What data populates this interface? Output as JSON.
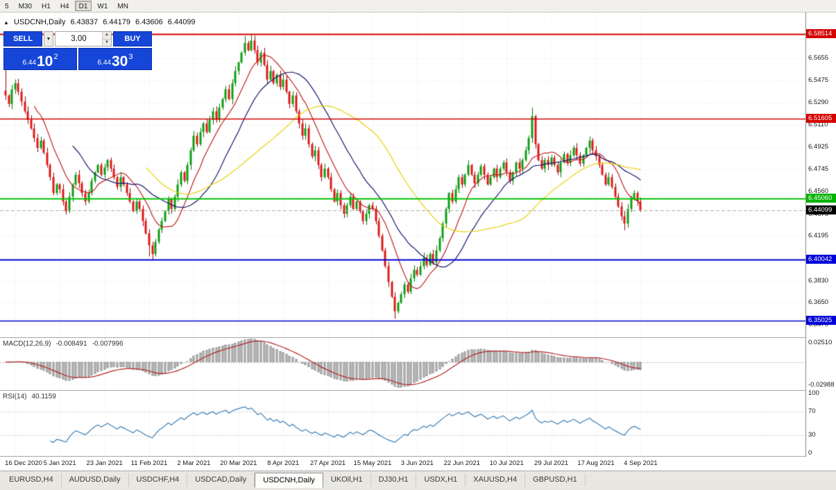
{
  "toolbar": {
    "timeframes": [
      "5",
      "M30",
      "H1",
      "H4",
      "D1",
      "W1",
      "MN"
    ],
    "active": "D1"
  },
  "chart_header": {
    "symbol": "USDCNH,Daily",
    "open": "6.43837",
    "high": "6.44179",
    "low": "6.43606",
    "close": "6.44099"
  },
  "trade_panel": {
    "sell_label": "SELL",
    "buy_label": "BUY",
    "volume": "3.00",
    "sell_price": {
      "base": "6.44",
      "big": "10",
      "sup": "2"
    },
    "buy_price": {
      "base": "6.44",
      "big": "30",
      "sup": "3"
    }
  },
  "y_axis": {
    "ticks": [
      "6.5655",
      "6.5475",
      "6.5290",
      "6.5110",
      "6.4925",
      "6.4745",
      "6.4560",
      "6.4375",
      "6.4195",
      "6.4010",
      "6.3830",
      "6.3650",
      "6.3470"
    ]
  },
  "price_lines": [
    {
      "value": "6.58514",
      "price": 6.58514,
      "line_color": "#D40000",
      "label_bg": "#D40000",
      "width": 2,
      "style": "solid"
    },
    {
      "value": "6.51605",
      "price": 6.51605,
      "line_color": "#D40000",
      "label_bg": "#D40000",
      "width": 1.4,
      "style": "solid"
    },
    {
      "value": "6.45060",
      "price": 6.4506,
      "line_color": "#00C400",
      "label_bg": "#00B400",
      "width": 2,
      "style": "solid"
    },
    {
      "value": "6.44099",
      "price": 6.44099,
      "line_color": "#ABABAB",
      "label_bg": "#000000",
      "width": 1,
      "style": "dash",
      "current": true
    },
    {
      "value": "6.40042",
      "price": 6.40042,
      "line_color": "#0000D8",
      "label_bg": "#0000D8",
      "width": 2,
      "style": "solid"
    },
    {
      "value": "6.35025",
      "price": 6.35025,
      "line_color": "#0000D8",
      "label_bg": "#0000D8",
      "width": 1.4,
      "style": "solid"
    }
  ],
  "macd": {
    "title": "MACD(12,26,9)",
    "value_main": "-0.008491",
    "value_signal": "-0.007996",
    "max_label": "0.02510",
    "min_label": "-0.02988",
    "fast": 12,
    "slow": 26,
    "signal": 9
  },
  "rsi": {
    "title": "RSI(14)",
    "value": "40.1159",
    "period": 14,
    "levels": [
      "100",
      "70",
      "30",
      "0"
    ],
    "dotted_levels": [
      70,
      30
    ]
  },
  "x_axis": {
    "dates": [
      "16 Dec 2020",
      "5 Jan 2021",
      "23 Jan 2021",
      "11 Feb 2021",
      "2 Mar 2021",
      "20 Mar 2021",
      "8 Apr 2021",
      "27 Apr 2021",
      "15 May 2021",
      "3 Jun 2021",
      "22 Jun 2021",
      "10 Jul 2021",
      "29 Jul 2021",
      "17 Aug 2021",
      "4 Sep 2021"
    ]
  },
  "tabs": {
    "active_index": 4,
    "items": [
      {
        "label": "EURUSD,H4"
      },
      {
        "label": "AUDUSD,Daily"
      },
      {
        "label": "USDCHF,H4"
      },
      {
        "label": "USDCAD,Daily"
      },
      {
        "label": "USDCNH,Daily"
      },
      {
        "label": "UKOil,H1"
      },
      {
        "label": "DJ30,H1"
      },
      {
        "label": "USDX,H1"
      },
      {
        "label": "XAUUSD,H4"
      },
      {
        "label": "GBPUSD,H1"
      }
    ]
  },
  "colors": {
    "panel_blue": "#1646D8",
    "up": "#0AA010",
    "up_border": "#067606",
    "down": "#E01818",
    "down_border": "#A00000",
    "grid": "#E4E4E4",
    "macd_bar": "#C8C8C8",
    "macd_bar_border": "#909090",
    "macd_signal": "#B22222",
    "rsi_line": "#3C7EB4",
    "current_price_label": "#000000"
  },
  "chart_data": {
    "type": "candlestick",
    "symbol": "USDCNH",
    "timeframe": "Daily",
    "ylim": [
      6.3367,
      6.603
    ],
    "date_first_index": 3,
    "date_step": 14,
    "moving_averages": [
      {
        "period": 10,
        "color": "#C02020"
      },
      {
        "period": 22,
        "color": "#16166E"
      },
      {
        "period": 45,
        "color": "#E8D20A"
      }
    ],
    "closes": [
      6.535,
      6.528,
      6.54,
      6.545,
      6.538,
      6.53,
      6.522,
      6.515,
      6.508,
      6.5,
      6.492,
      6.498,
      6.488,
      6.478,
      6.468,
      6.455,
      6.462,
      6.458,
      6.448,
      6.44,
      6.452,
      6.462,
      6.47,
      6.463,
      6.455,
      6.448,
      6.455,
      6.465,
      6.472,
      6.478,
      6.47,
      6.476,
      6.482,
      6.475,
      6.468,
      6.46,
      6.468,
      6.462,
      6.455,
      6.448,
      6.44,
      6.448,
      6.442,
      6.432,
      6.422,
      6.412,
      6.405,
      6.415,
      6.425,
      6.432,
      6.44,
      6.45,
      6.442,
      6.452,
      6.462,
      6.472,
      6.465,
      6.478,
      6.49,
      6.502,
      6.495,
      6.505,
      6.512,
      6.505,
      6.515,
      6.522,
      6.515,
      6.525,
      6.532,
      6.54,
      6.532,
      6.545,
      6.555,
      6.562,
      6.57,
      6.578,
      6.572,
      6.58,
      6.572,
      6.562,
      6.57,
      6.56,
      6.548,
      6.555,
      6.545,
      6.552,
      6.542,
      6.548,
      6.538,
      6.528,
      6.535,
      6.522,
      6.512,
      6.502,
      6.508,
      6.495,
      6.485,
      6.49,
      6.478,
      6.468,
      6.475,
      6.468,
      6.458,
      6.448,
      6.455,
      6.445,
      6.438,
      6.445,
      6.452,
      6.442,
      6.448,
      6.44,
      6.432,
      6.438,
      6.445,
      6.442,
      6.432,
      6.42,
      6.408,
      6.395,
      6.382,
      6.37,
      6.358,
      6.365,
      6.372,
      6.38,
      6.374,
      6.385,
      6.392,
      6.388,
      6.395,
      6.402,
      6.396,
      6.405,
      6.398,
      6.408,
      6.418,
      6.43,
      6.442,
      6.455,
      6.448,
      6.458,
      6.468,
      6.462,
      6.47,
      6.478,
      6.47,
      6.463,
      6.47,
      6.477,
      6.47,
      6.462,
      6.468,
      6.475,
      6.468,
      6.475,
      6.48,
      6.472,
      6.465,
      6.472,
      6.48,
      6.475,
      6.482,
      6.49,
      6.5,
      6.518,
      6.495,
      6.482,
      6.475,
      6.482,
      6.478,
      6.484,
      6.478,
      6.472,
      6.48,
      6.487,
      6.48,
      6.486,
      6.492,
      6.486,
      6.479,
      6.486,
      6.492,
      6.498,
      6.49,
      6.485,
      6.478,
      6.47,
      6.462,
      6.468,
      6.46,
      6.452,
      6.444,
      6.436,
      6.43,
      6.442,
      6.45,
      6.455,
      6.448,
      6.441
    ],
    "wick_overrides": {
      "0": {
        "high": 6.556
      },
      "45": {
        "low": 6.403
      },
      "46": {
        "low": 6.4005
      },
      "75": {
        "high": 6.5838
      },
      "77": {
        "high": 6.5851
      },
      "122": {
        "low": 6.352
      },
      "165": {
        "high": 6.525
      },
      "194": {
        "low": 6.4245
      }
    }
  }
}
